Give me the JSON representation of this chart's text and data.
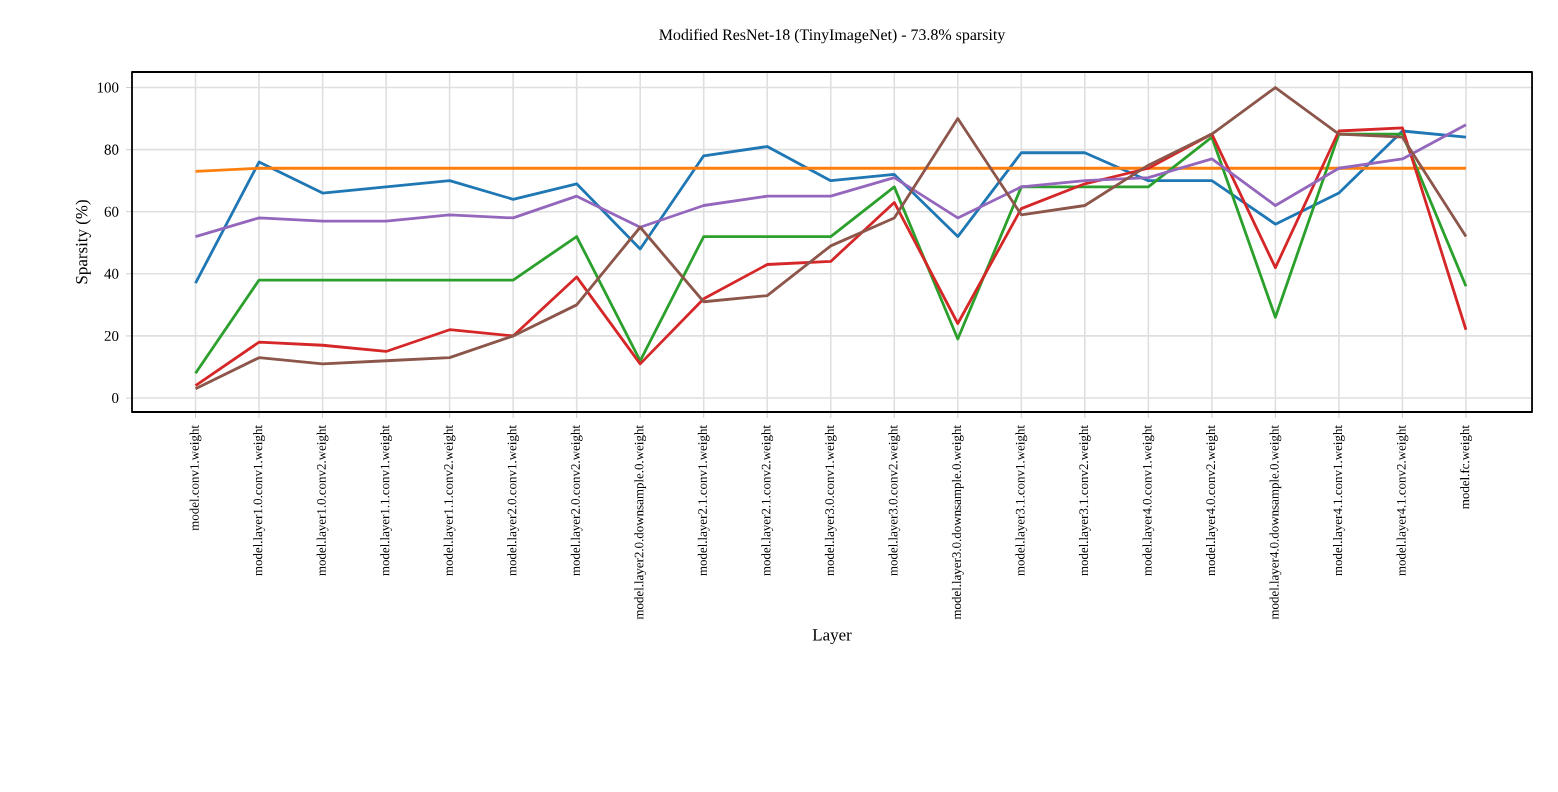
{
  "chart_data": {
    "type": "line",
    "title": "Modified ResNet-18 (TinyImageNet) - 73.8% sparsity",
    "xlabel": "Layer",
    "ylabel": "Sparsity (%)",
    "categories": [
      "model.conv1.weight",
      "model.layer1.0.conv1.weight",
      "model.layer1.0.conv2.weight",
      "model.layer1.1.conv1.weight",
      "model.layer1.1.conv2.weight",
      "model.layer2.0.conv1.weight",
      "model.layer2.0.conv2.weight",
      "model.layer2.0.downsample.0.weight",
      "model.layer2.1.conv1.weight",
      "model.layer2.1.conv2.weight",
      "model.layer3.0.conv1.weight",
      "model.layer3.0.conv2.weight",
      "model.layer3.0.downsample.0.weight",
      "model.layer3.1.conv1.weight",
      "model.layer3.1.conv2.weight",
      "model.layer4.0.conv1.weight",
      "model.layer4.0.conv2.weight",
      "model.layer4.0.downsample.0.weight",
      "model.layer4.1.conv1.weight",
      "model.layer4.1.conv2.weight",
      "model.fc.weight"
    ],
    "series": [
      {
        "color": "#1f77b4",
        "values": [
          37,
          76,
          66,
          68,
          70,
          64,
          69,
          48,
          78,
          81,
          70,
          72,
          52,
          79,
          79,
          70,
          70,
          56,
          66,
          86,
          84
        ]
      },
      {
        "color": "#ff7f0e",
        "values": [
          73,
          74,
          74,
          74,
          74,
          74,
          74,
          74,
          74,
          74,
          74,
          74,
          74,
          74,
          74,
          74,
          74,
          74,
          74,
          74,
          74
        ]
      },
      {
        "color": "#2ca02c",
        "values": [
          8,
          38,
          38,
          38,
          38,
          38,
          52,
          12,
          52,
          52,
          52,
          68,
          19,
          68,
          68,
          68,
          84,
          26,
          85,
          85,
          36
        ]
      },
      {
        "color": "#d62728",
        "values": [
          4,
          18,
          17,
          15,
          22,
          20,
          39,
          11,
          32,
          43,
          44,
          63,
          24,
          61,
          69,
          74,
          85,
          42,
          86,
          87,
          22
        ]
      },
      {
        "color": "#9467bd",
        "values": [
          52,
          58,
          57,
          57,
          59,
          58,
          65,
          55,
          62,
          65,
          65,
          71,
          58,
          68,
          70,
          71,
          77,
          62,
          74,
          77,
          88
        ]
      },
      {
        "color": "#8c564b",
        "values": [
          3,
          13,
          11,
          12,
          13,
          20,
          30,
          55,
          31,
          33,
          49,
          58,
          90,
          59,
          62,
          75,
          85,
          100,
          85,
          84,
          52
        ]
      }
    ],
    "ylim": [
      -4.5,
      105
    ],
    "yticks": [
      0,
      20,
      40,
      60,
      80,
      100
    ],
    "grid": true,
    "marker": "none",
    "line_style": "solid"
  }
}
